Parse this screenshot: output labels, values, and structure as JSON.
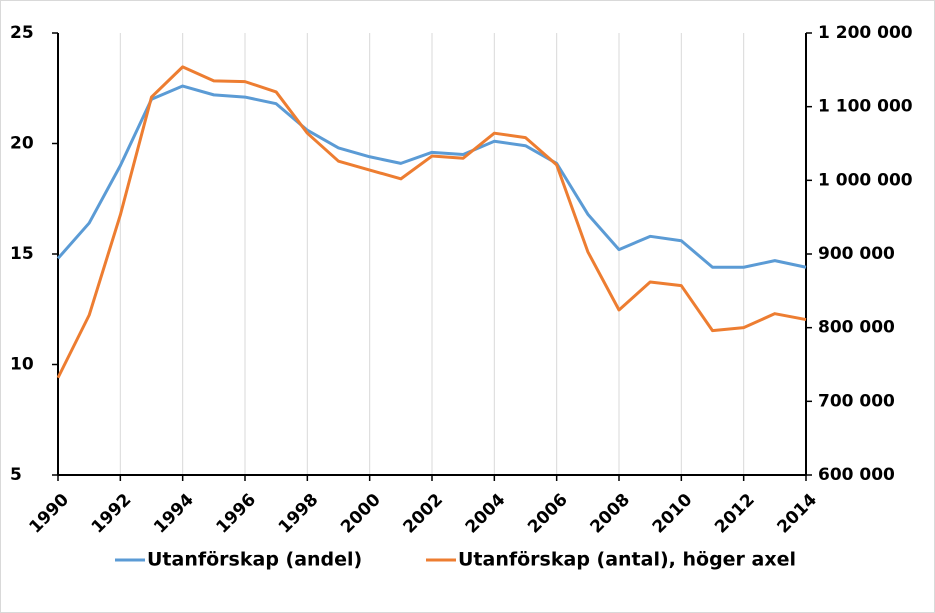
{
  "chart_data": {
    "type": "line",
    "x": [
      1990,
      1991,
      1992,
      1993,
      1994,
      1995,
      1996,
      1997,
      1998,
      1999,
      2000,
      2001,
      2002,
      2003,
      2004,
      2005,
      2006,
      2007,
      2008,
      2009,
      2010,
      2011,
      2012,
      2013,
      2014
    ],
    "series": [
      {
        "name": "Utanförskap (andel)",
        "color": "#5b9bd5",
        "values": [
          14.8,
          16.4,
          19.0,
          22.0,
          22.6,
          22.2,
          22.1,
          21.8,
          20.6,
          19.8,
          19.4,
          19.1,
          19.6,
          19.5,
          20.1,
          19.9,
          19.1,
          16.8,
          15.2,
          15.8,
          15.6,
          14.4,
          14.4,
          14.7,
          14.4
        ]
      },
      {
        "name": "Utanförskap (antal), höger axel",
        "color": "#ed7d31",
        "axis": "y2",
        "values": [
          732000,
          817000,
          953000,
          1113000,
          1154000,
          1135000,
          1134000,
          1120000,
          1064000,
          1026000,
          1014000,
          1002000,
          1033000,
          1030000,
          1064000,
          1058000,
          1021000,
          903000,
          824000,
          862000,
          857000,
          796000,
          800000,
          819000,
          811000
        ]
      }
    ],
    "xlim": [
      1990,
      2014
    ],
    "xticks": [
      1990,
      1992,
      1994,
      1996,
      1998,
      2000,
      2002,
      2004,
      2006,
      2008,
      2010,
      2012,
      2014
    ],
    "ylim": [
      5,
      25
    ],
    "yticks": [
      5,
      10,
      15,
      20,
      25
    ],
    "y2lim": [
      600000,
      1200000
    ],
    "y2ticks": [
      {
        "value": 600000,
        "label": "600 000"
      },
      {
        "value": 700000,
        "label": "700 000"
      },
      {
        "value": 800000,
        "label": "800 000"
      },
      {
        "value": 900000,
        "label": "900 000"
      },
      {
        "value": 1000000,
        "label": "1 000 000"
      },
      {
        "value": 1100000,
        "label": "1 100 000"
      },
      {
        "value": 1200000,
        "label": "1 200 000"
      }
    ],
    "grid": true,
    "legend": "bottom"
  }
}
